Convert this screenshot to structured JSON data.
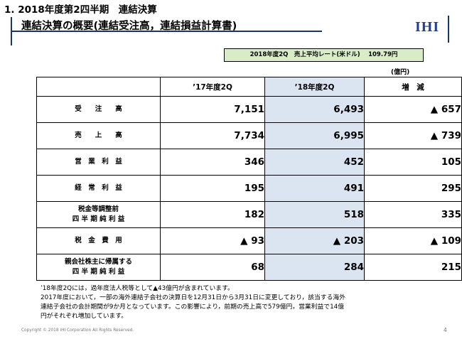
{
  "section_title": "1. 2018年度第2四半期　連結決算",
  "title": "連結決算の概要(連結受注高，連結損益計算書)",
  "logo": "IHI",
  "rate_box": "2018年度2Q　売上平均レート(米ドル)　 109.79円",
  "unit": "(億円)",
  "table": {
    "headers": [
      "",
      "’17年度2Q",
      "’18年度2Q",
      "増　減"
    ],
    "rows": [
      {
        "label1": "受　　注　　高",
        "label2": "",
        "v17": "7,151",
        "v18": "6,493",
        "diff": "▲ 657"
      },
      {
        "label1": "売　　上　　高",
        "label2": "",
        "v17": "7,734",
        "v18": "6,995",
        "diff": "▲ 739"
      },
      {
        "label1": "営　業　利　益",
        "label2": "",
        "v17": "346",
        "v18": "452",
        "diff": "105"
      },
      {
        "label1": "経　常　利　益",
        "label2": "",
        "v17": "195",
        "v18": "491",
        "diff": "295"
      },
      {
        "label1": "税金等調整前",
        "label2": "四 半 期 純 利 益",
        "v17": "182",
        "v18": "518",
        "diff": "335"
      },
      {
        "label1": "税　金　費　用",
        "label2": "",
        "v17": "▲ 93",
        "v18": "▲ 203",
        "diff": "▲ 109"
      },
      {
        "label1": "親会社株主に帰属する",
        "label2": "四 半 期 純 利 益",
        "v17": "68",
        "v18": "284",
        "diff": "215"
      }
    ]
  },
  "notes": [
    "’18年度2Qには，過年度法人税等として▲43億円が含まれています。",
    "2017年度において，一部の海外連結子会社の決算日を12月31日から3月31日に変更しており，該当する海外",
    "連結子会社の会計期間が9か月となっています。この影響により，前期の売上高で579億円，営業利益で14億",
    "円がそれぞれ増加しています。"
  ],
  "copyright": "Copyright © 2018 IHI Corporation All Rights Reserved.",
  "page_number": "4"
}
